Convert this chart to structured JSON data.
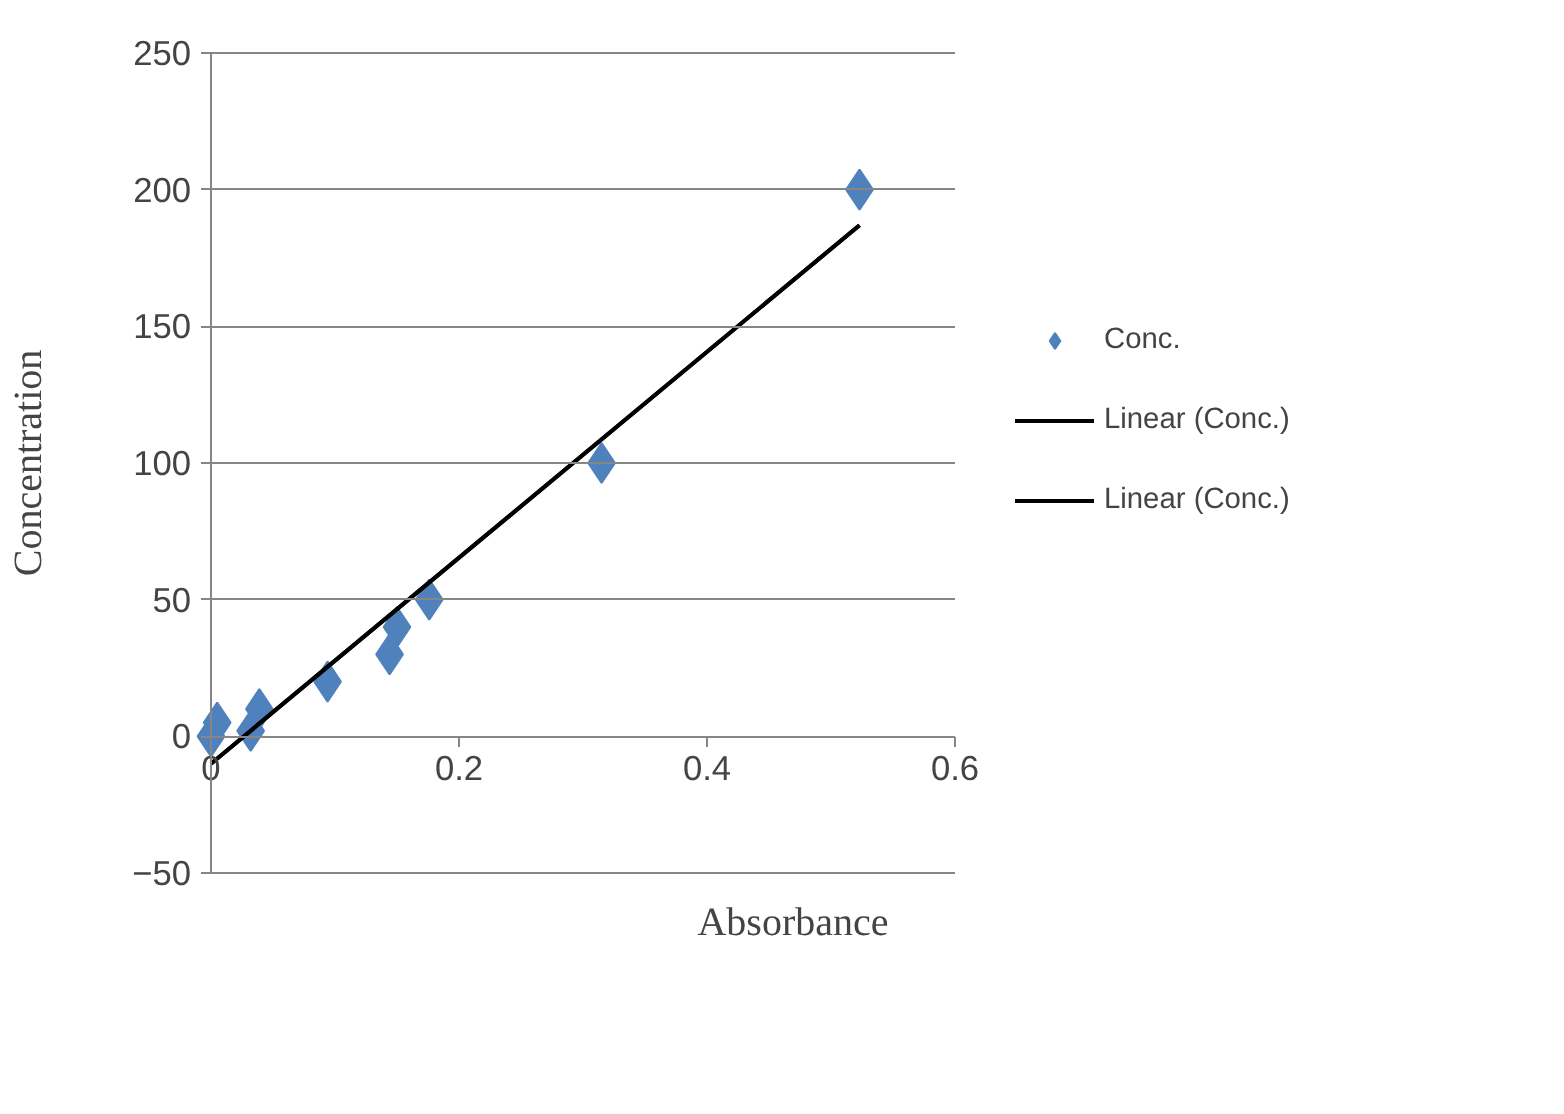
{
  "chart_data": {
    "type": "scatter",
    "xlabel": "Absorbance",
    "ylabel": "Concentration",
    "xlim": [
      0,
      0.6
    ],
    "ylim": [
      -50,
      250
    ],
    "xticks": [
      0,
      0.2,
      0.4,
      0.6
    ],
    "yticks": [
      -50,
      0,
      50,
      100,
      150,
      200,
      250
    ],
    "grid": "y",
    "legend": "right",
    "marker": "diamond",
    "series": [
      {
        "name": "Conc.",
        "color": "#4f81bd",
        "x": [
          0,
          0.005,
          0.032,
          0.039,
          0.094,
          0.144,
          0.15,
          0.176,
          0.315,
          0.523
        ],
        "values": [
          0,
          5,
          2,
          10,
          20,
          30,
          40,
          50,
          100,
          200
        ]
      },
      {
        "name": "Linear (Conc.)",
        "type": "line",
        "marker": "none",
        "color": "#000000",
        "x": [
          0,
          0.523
        ],
        "values": [
          -10,
          187
        ]
      },
      {
        "name": "Linear (Conc.)",
        "type": "line",
        "marker": "none",
        "color": "#000000",
        "x": [
          0,
          0.523
        ],
        "values": [
          -10,
          187
        ]
      }
    ]
  }
}
